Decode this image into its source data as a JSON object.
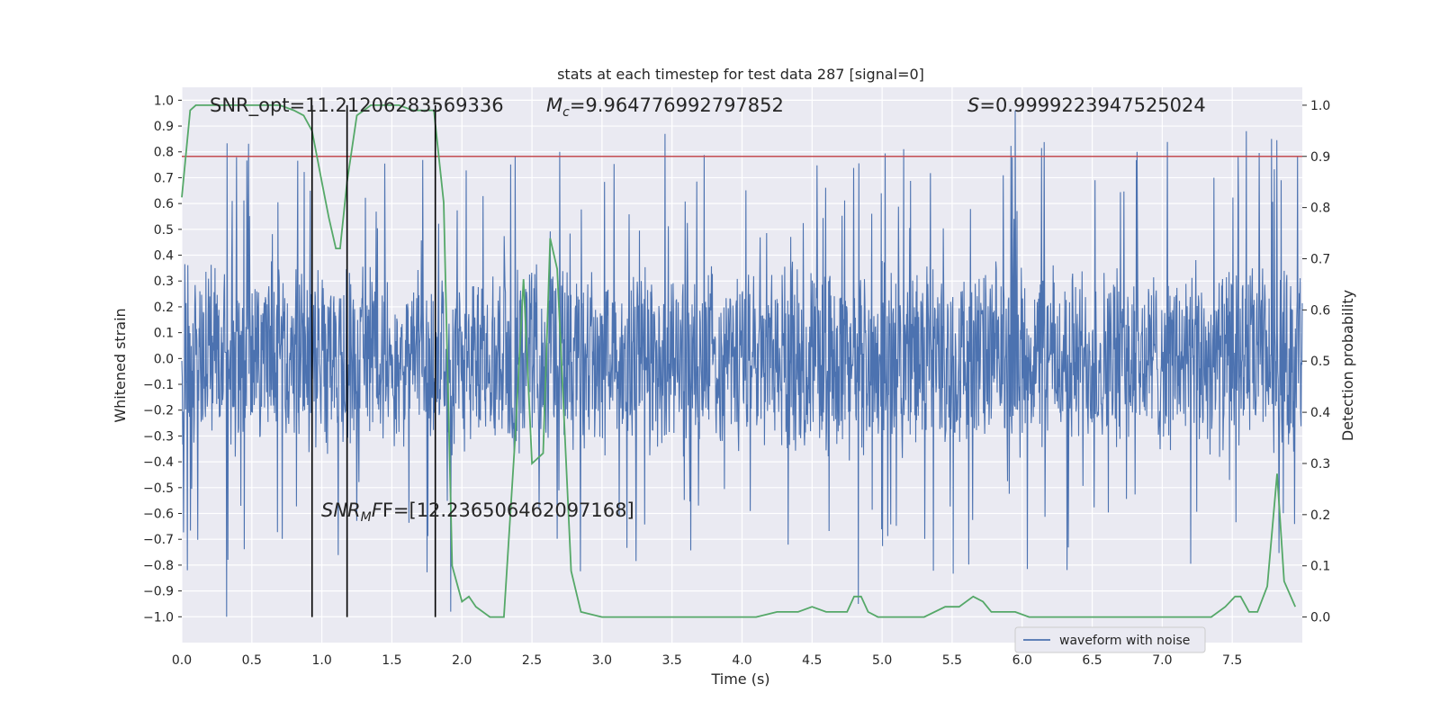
{
  "chart_data": {
    "type": "line",
    "title": "stats at each timestep for test data 287 [signal=0]",
    "xlabel": "Time (s)",
    "ylabel_left": "Whitened strain",
    "ylabel_right": "Detection probability",
    "xlim": [
      0.0,
      8.0
    ],
    "ylim_left": [
      -1.1,
      1.05
    ],
    "ylim_right": [
      -0.05,
      1.035
    ],
    "x_ticks": [
      "0.0",
      "0.5",
      "1.0",
      "1.5",
      "2.0",
      "2.5",
      "3.0",
      "3.5",
      "4.0",
      "4.5",
      "5.0",
      "5.5",
      "6.0",
      "6.5",
      "7.0",
      "7.5"
    ],
    "y_ticks_left": [
      "1.0",
      "0.9",
      "0.8",
      "0.7",
      "0.6",
      "0.5",
      "0.4",
      "0.3",
      "0.2",
      "0.1",
      "0.0",
      "-0.1",
      "-0.2",
      "-0.3",
      "-0.4",
      "-0.5",
      "-0.6",
      "-0.7",
      "-0.8",
      "-0.9",
      "-1.0"
    ],
    "y_ticks_right": [
      "1.0",
      "0.9",
      "0.8",
      "0.7",
      "0.6",
      "0.5",
      "0.4",
      "0.3",
      "0.2",
      "0.1",
      "0.0"
    ],
    "grid": true,
    "colors": {
      "background": "#eaeaf2",
      "waveform": "#4c72b0",
      "probability": "#55a868",
      "threshold": "#c44e52",
      "markers": "#000000"
    },
    "annotations": {
      "snr_opt": "SNR_opt=11.21206283569336",
      "mc": "=9.964776992797852",
      "s": "=0.9999223947525024",
      "snr_mf": "F=[12.236506462097168]"
    },
    "legend": {
      "label": "waveform with noise",
      "location": "lower-right"
    },
    "threshold_probability": 0.9,
    "vertical_markers_s": [
      0.93,
      1.18,
      1.81
    ],
    "series": [
      {
        "name": "waveform with noise",
        "axis": "left",
        "kind": "noise",
        "envelope_typical": 0.35,
        "max_value": 0.96,
        "min_value": -1.0,
        "duration_s": 8.0
      },
      {
        "name": "detection probability",
        "axis": "right",
        "x": [
          0.0,
          0.06,
          0.1,
          0.2,
          0.3,
          0.5,
          0.7,
          0.8,
          0.87,
          0.93,
          1.0,
          1.05,
          1.1,
          1.13,
          1.18,
          1.25,
          1.3,
          1.35,
          1.45,
          1.55,
          1.65,
          1.8,
          1.87,
          1.93,
          2.0,
          2.05,
          2.1,
          2.2,
          2.3,
          2.38,
          2.44,
          2.5,
          2.58,
          2.63,
          2.68,
          2.78,
          2.85,
          3.0,
          3.3,
          3.6,
          4.0,
          4.1,
          4.25,
          4.4,
          4.5,
          4.6,
          4.75,
          4.8,
          4.85,
          4.9,
          4.97,
          5.1,
          5.3,
          5.45,
          5.55,
          5.65,
          5.72,
          5.78,
          5.86,
          5.95,
          6.05,
          6.2,
          6.4,
          6.6,
          6.8,
          7.0,
          7.2,
          7.35,
          7.45,
          7.52,
          7.56,
          7.62,
          7.68,
          7.75,
          7.82,
          7.87,
          7.95
        ],
        "values": [
          0.82,
          0.99,
          1.0,
          1.0,
          1.0,
          1.0,
          1.0,
          0.99,
          0.98,
          0.95,
          0.85,
          0.78,
          0.72,
          0.72,
          0.85,
          0.98,
          0.99,
          1.0,
          1.0,
          1.0,
          0.99,
          0.99,
          0.81,
          0.1,
          0.03,
          0.04,
          0.02,
          0.0,
          0.0,
          0.35,
          0.66,
          0.3,
          0.32,
          0.74,
          0.68,
          0.09,
          0.01,
          0.0,
          0.0,
          0.0,
          0.0,
          0.0,
          0.01,
          0.01,
          0.02,
          0.01,
          0.01,
          0.04,
          0.04,
          0.01,
          0.0,
          0.0,
          0.0,
          0.02,
          0.02,
          0.04,
          0.03,
          0.01,
          0.01,
          0.01,
          0.0,
          0.0,
          0.0,
          0.0,
          0.0,
          0.0,
          0.0,
          0.0,
          0.02,
          0.04,
          0.04,
          0.01,
          0.01,
          0.06,
          0.28,
          0.07,
          0.02
        ]
      }
    ]
  }
}
